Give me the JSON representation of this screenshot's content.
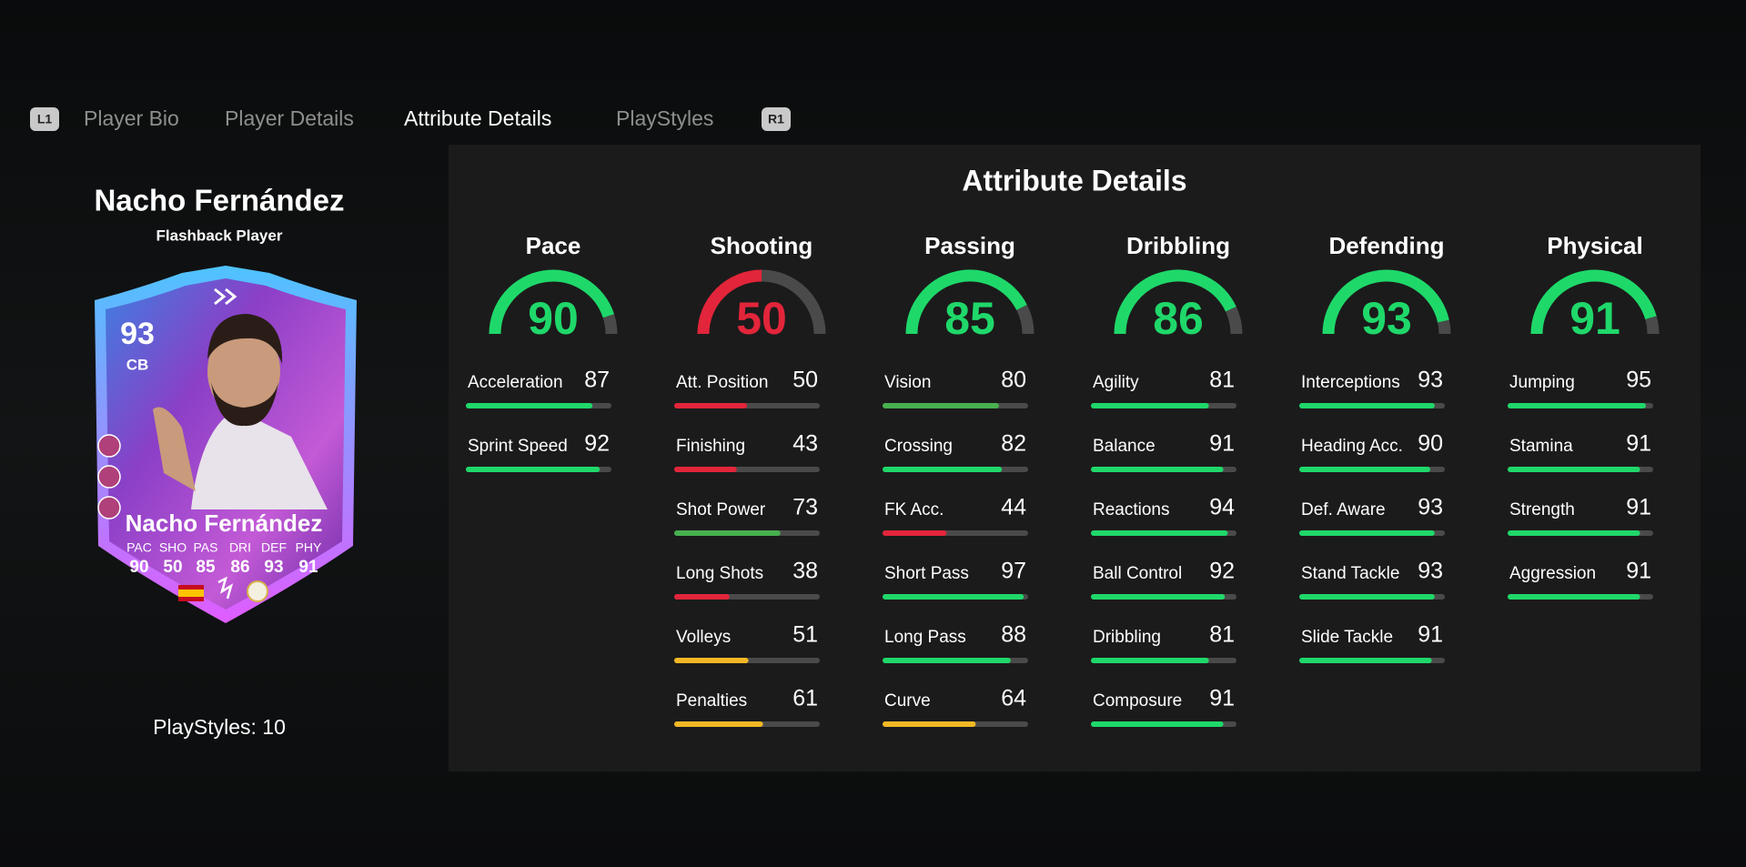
{
  "tabs": {
    "left_button": "L1",
    "right_button": "R1",
    "items": [
      "Player Bio",
      "Player Details",
      "Attribute Details",
      "PlayStyles"
    ],
    "active": 2
  },
  "player": {
    "name": "Nacho Fernández",
    "subtitle": "Flashback Player",
    "playstyles": "PlayStyles: 10",
    "card": {
      "rating": 93,
      "position": "CB",
      "name": "Nacho Fernández",
      "stats": [
        {
          "label": "PAC",
          "value": 90
        },
        {
          "label": "SHO",
          "value": 50
        },
        {
          "label": "PAS",
          "value": 85
        },
        {
          "label": "DRI",
          "value": 86
        },
        {
          "label": "DEF",
          "value": 93
        },
        {
          "label": "PHY",
          "value": 91
        }
      ]
    }
  },
  "panel": {
    "title": "Attribute Details",
    "groups": [
      {
        "name": "Pace",
        "value": 90,
        "color": "#1fd86a",
        "attributes": [
          {
            "name": "Acceleration",
            "value": 87,
            "color": "#1fd86a"
          },
          {
            "name": "Sprint Speed",
            "value": 92,
            "color": "#1fd86a"
          }
        ]
      },
      {
        "name": "Shooting",
        "value": 50,
        "color": "#e2253a",
        "attributes": [
          {
            "name": "Att. Position",
            "value": 50,
            "color": "#e2253a"
          },
          {
            "name": "Finishing",
            "value": 43,
            "color": "#e2253a"
          },
          {
            "name": "Shot Power",
            "value": 73,
            "color": "#47b04f"
          },
          {
            "name": "Long Shots",
            "value": 38,
            "color": "#e2253a"
          },
          {
            "name": "Volleys",
            "value": 51,
            "color": "#f3b825"
          },
          {
            "name": "Penalties",
            "value": 61,
            "color": "#f3b825"
          }
        ]
      },
      {
        "name": "Passing",
        "value": 85,
        "color": "#1fd86a",
        "attributes": [
          {
            "name": "Vision",
            "value": 80,
            "color": "#47b04f"
          },
          {
            "name": "Crossing",
            "value": 82,
            "color": "#1fd86a"
          },
          {
            "name": "FK Acc.",
            "value": 44,
            "color": "#e2253a"
          },
          {
            "name": "Short Pass",
            "value": 97,
            "color": "#1fd86a"
          },
          {
            "name": "Long Pass",
            "value": 88,
            "color": "#1fd86a"
          },
          {
            "name": "Curve",
            "value": 64,
            "color": "#f3b825"
          }
        ]
      },
      {
        "name": "Dribbling",
        "value": 86,
        "color": "#1fd86a",
        "attributes": [
          {
            "name": "Agility",
            "value": 81,
            "color": "#1fd86a"
          },
          {
            "name": "Balance",
            "value": 91,
            "color": "#1fd86a"
          },
          {
            "name": "Reactions",
            "value": 94,
            "color": "#1fd86a"
          },
          {
            "name": "Ball Control",
            "value": 92,
            "color": "#1fd86a"
          },
          {
            "name": "Dribbling",
            "value": 81,
            "color": "#1fd86a"
          },
          {
            "name": "Composure",
            "value": 91,
            "color": "#1fd86a"
          }
        ]
      },
      {
        "name": "Defending",
        "value": 93,
        "color": "#1fd86a",
        "attributes": [
          {
            "name": "Interceptions",
            "value": 93,
            "color": "#1fd86a"
          },
          {
            "name": "Heading Acc.",
            "value": 90,
            "color": "#1fd86a"
          },
          {
            "name": "Def. Aware",
            "value": 93,
            "color": "#1fd86a"
          },
          {
            "name": "Stand Tackle",
            "value": 93,
            "color": "#1fd86a"
          },
          {
            "name": "Slide Tackle",
            "value": 91,
            "color": "#1fd86a"
          }
        ]
      },
      {
        "name": "Physical",
        "value": 91,
        "color": "#1fd86a",
        "attributes": [
          {
            "name": "Jumping",
            "value": 95,
            "color": "#1fd86a"
          },
          {
            "name": "Stamina",
            "value": 91,
            "color": "#1fd86a"
          },
          {
            "name": "Strength",
            "value": 91,
            "color": "#1fd86a"
          },
          {
            "name": "Aggression",
            "value": 91,
            "color": "#1fd86a"
          }
        ]
      }
    ]
  }
}
